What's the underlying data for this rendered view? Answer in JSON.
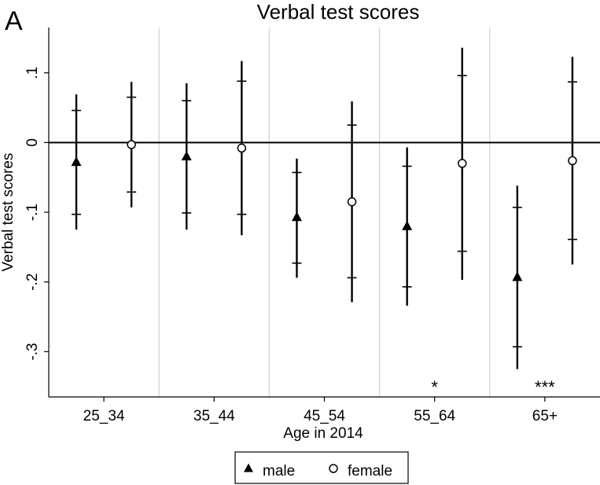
{
  "chart_data": {
    "type": "scatter",
    "panel_label": "A",
    "title": "Verbal test scores",
    "xlabel": "Age in 2014",
    "ylabel": "Verbal test scores",
    "categories": [
      "25_34",
      "35_44",
      "45_54",
      "55_64",
      "65+"
    ],
    "ylim": [
      -0.365,
      0.165
    ],
    "yticks": [
      -0.3,
      -0.2,
      -0.1,
      0,
      0.1
    ],
    "ytick_labels": [
      "-.3",
      "-.2",
      "-.1",
      "0",
      ".1"
    ],
    "reference_line": 0,
    "series": [
      {
        "name": "male",
        "marker": "triangle",
        "values": [
          -0.028,
          -0.02,
          -0.107,
          -0.12,
          -0.193
        ],
        "inner_ci": [
          [
            -0.103,
            0.046
          ],
          [
            -0.101,
            0.06
          ],
          [
            -0.173,
            -0.043
          ],
          [
            -0.207,
            -0.034
          ],
          [
            -0.293,
            -0.093
          ]
        ],
        "outer_ci": [
          [
            -0.125,
            0.069
          ],
          [
            -0.125,
            0.085
          ],
          [
            -0.194,
            -0.023
          ],
          [
            -0.234,
            -0.007
          ],
          [
            -0.325,
            -0.062
          ]
        ]
      },
      {
        "name": "female",
        "marker": "circle",
        "values": [
          -0.003,
          -0.008,
          -0.085,
          -0.03,
          -0.026
        ],
        "inner_ci": [
          [
            -0.071,
            0.065
          ],
          [
            -0.103,
            0.088
          ],
          [
            -0.194,
            0.025
          ],
          [
            -0.156,
            0.096
          ],
          [
            -0.139,
            0.087
          ]
        ],
        "outer_ci": [
          [
            -0.093,
            0.087
          ],
          [
            -0.133,
            0.117
          ],
          [
            -0.229,
            0.059
          ],
          [
            -0.197,
            0.136
          ],
          [
            -0.175,
            0.123
          ]
        ]
      }
    ],
    "significance": [
      "",
      "",
      "",
      "*",
      "***"
    ],
    "legend": {
      "position": "bottom",
      "entries": [
        "male",
        "female"
      ]
    },
    "grid": {
      "vertical_separators": true,
      "horizontal": false
    },
    "colors": {
      "marks": "#000000",
      "separators": "#d0d0d0",
      "frame": "#000000"
    }
  }
}
